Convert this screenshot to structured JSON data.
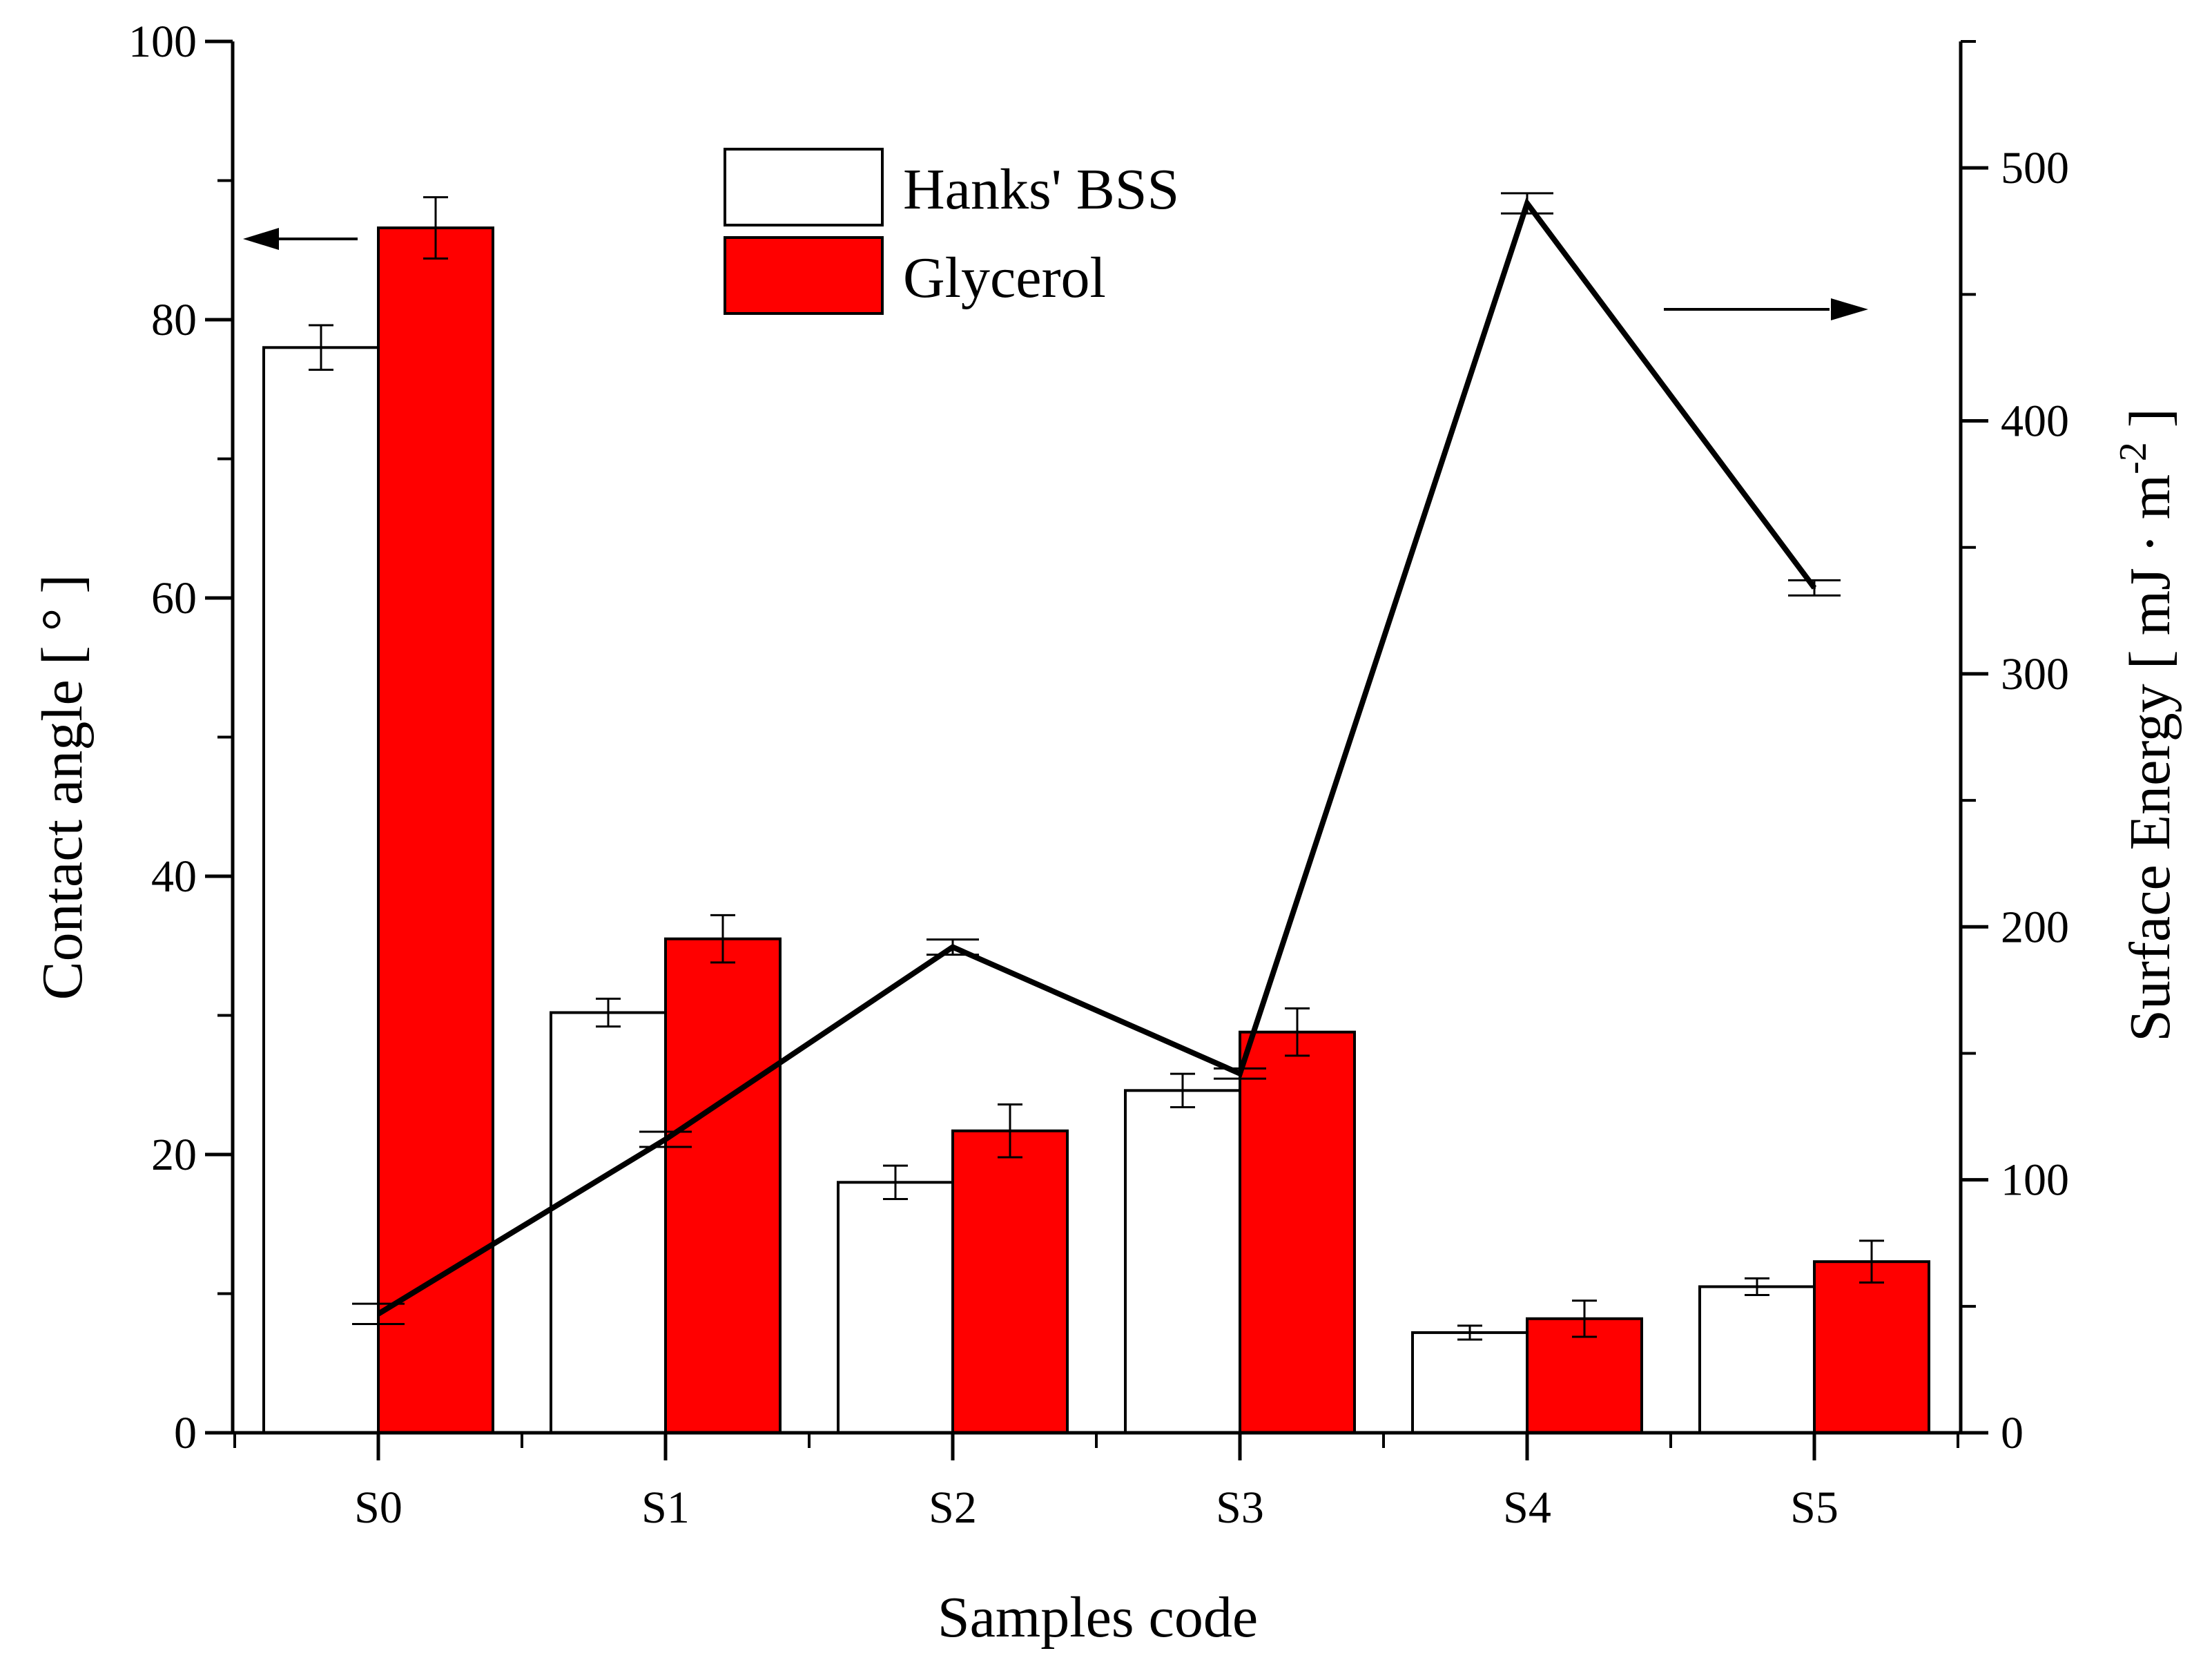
{
  "chart_data": {
    "type": "bar",
    "xlabel": "Samples code",
    "ylabel": "Contact angle [ ° ]",
    "y2label_main": "Surface Energy [ mJ · m",
    "y2label_sup": "-2",
    "y2label_end": " ]",
    "categories": [
      "S0",
      "S1",
      "S2",
      "S3",
      "S4",
      "S5"
    ],
    "ylim": [
      0,
      100
    ],
    "yticks": [
      0,
      20,
      40,
      60,
      80,
      100
    ],
    "y2lim": [
      0,
      550
    ],
    "y2ticks": [
      0,
      100,
      200,
      300,
      400,
      500
    ],
    "series": [
      {
        "name": "Hanks' BSS",
        "kind": "bar",
        "axis": "left",
        "fill": "#ffffff",
        "values": [
          78.0,
          30.2,
          18.0,
          24.6,
          7.2,
          10.5
        ],
        "errors": [
          1.6,
          1.0,
          1.2,
          1.2,
          0.5,
          0.6
        ]
      },
      {
        "name": "Glycerol",
        "kind": "bar",
        "axis": "left",
        "fill": "#ff0000",
        "values": [
          86.6,
          35.5,
          21.7,
          28.8,
          8.2,
          12.3
        ],
        "errors": [
          2.2,
          1.7,
          1.9,
          1.7,
          1.3,
          1.5
        ]
      },
      {
        "name": "Surface Energy",
        "kind": "line",
        "axis": "right",
        "color": "#000000",
        "values": [
          47,
          116,
          192,
          142,
          486,
          334
        ],
        "errors": [
          4,
          3,
          3,
          2,
          4,
          3
        ]
      }
    ],
    "legend_position": "top-center",
    "arrows": [
      {
        "points_to": "left axis",
        "near": "S0 Glycerol bar"
      },
      {
        "points_to": "right axis",
        "near": "S5"
      }
    ]
  }
}
